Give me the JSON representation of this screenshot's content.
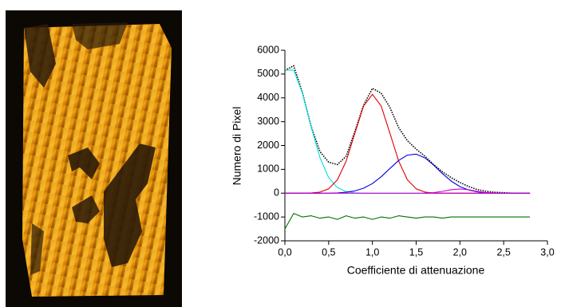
{
  "chart_data": {
    "type": "line",
    "xlabel": "Coefficiente di attenuazione",
    "ylabel": "Numero di Pixel",
    "x": [
      0,
      0.1,
      0.2,
      0.3,
      0.4,
      0.5,
      0.6,
      0.7,
      0.8,
      0.9,
      1.0,
      1.1,
      1.2,
      1.3,
      1.4,
      1.5,
      1.6,
      1.7,
      1.8,
      1.9,
      2.0,
      2.1,
      2.2,
      2.3,
      2.4,
      2.5,
      2.6,
      2.7,
      2.8
    ],
    "series": [
      {
        "color": "#000000",
        "dotted": true,
        "values": [
          5150,
          5350,
          4230,
          2800,
          1750,
          1300,
          1200,
          1550,
          2600,
          3700,
          4400,
          4200,
          3600,
          2750,
          2200,
          1850,
          1550,
          1200,
          900,
          650,
          450,
          280,
          150,
          80,
          40,
          20,
          0,
          0,
          0
        ]
      },
      {
        "color": "#00e0e0",
        "values": [
          5165,
          5165,
          4203,
          2777,
          1495,
          656,
          233,
          68,
          16,
          0,
          0,
          0,
          0,
          0,
          0,
          0,
          0,
          0,
          0,
          0,
          0,
          0,
          0,
          0,
          0,
          0,
          0,
          0,
          0
        ]
      },
      {
        "color": "#e00000",
        "values": [
          0,
          0,
          0,
          9,
          46,
          183,
          562,
          1348,
          2517,
          3662,
          4150,
          3662,
          2517,
          1348,
          562,
          183,
          46,
          9,
          0,
          0,
          0,
          0,
          0,
          0,
          0,
          0,
          0,
          0,
          0
        ]
      },
      {
        "color": "#0000e0",
        "values": [
          0,
          0,
          0,
          0,
          0,
          0,
          12,
          38,
          94,
          208,
          403,
          689,
          1036,
          1373,
          1599,
          1640,
          1481,
          1178,
          823,
          507,
          276,
          132,
          55,
          20,
          0,
          0,
          0,
          0,
          0
        ]
      },
      {
        "color": "#cc00cc",
        "values": [
          0,
          0,
          0,
          0,
          0,
          0,
          0,
          0,
          0,
          0,
          0,
          0,
          0,
          0,
          0,
          0,
          0,
          0,
          0,
          0,
          0,
          0,
          0,
          0,
          0,
          0,
          0,
          0,
          0
        ]
      },
      {
        "color": "#cc00cc",
        "values": [
          null,
          null,
          null,
          null,
          null,
          null,
          null,
          null,
          null,
          null,
          null,
          null,
          null,
          null,
          null,
          null,
          5,
          24,
          74,
          144,
          180,
          144,
          74,
          24,
          5,
          null,
          null,
          null,
          null
        ]
      },
      {
        "color": "#007000",
        "values": [
          -1500,
          -850,
          -1000,
          -950,
          -1050,
          -1000,
          -1100,
          -950,
          -1050,
          -1000,
          -1100,
          -1000,
          -1050,
          -950,
          -1000,
          -1050,
          -1000,
          -1000,
          -1050,
          -1000,
          -1000,
          -1000,
          -1000,
          -1000,
          -1000,
          -1000,
          -1000,
          -1000,
          -1000
        ]
      }
    ],
    "xlim": [
      0,
      3.0
    ],
    "xticks": [
      {
        "value": 0,
        "label": "0,0"
      },
      {
        "value": 0.5,
        "label": "0,5"
      },
      {
        "value": 1.0,
        "label": "1,0"
      },
      {
        "value": 1.5,
        "label": "1,5"
      },
      {
        "value": 2.0,
        "label": "2,0"
      },
      {
        "value": 2.5,
        "label": "2,5"
      },
      {
        "value": 3.0,
        "label": "3,0"
      }
    ],
    "ylim": [
      -2000,
      6000
    ],
    "yticks": [
      -2000,
      -1000,
      0,
      1000,
      2000,
      3000,
      4000,
      5000,
      6000
    ]
  }
}
